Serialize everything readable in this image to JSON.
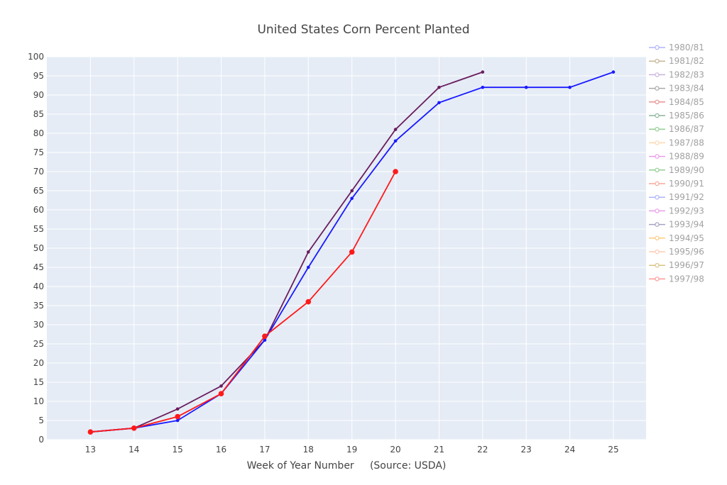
{
  "chart_data": {
    "type": "line",
    "title": "United States Corn Percent Planted",
    "xlabel": "Week of Year Number     (Source: USDA)",
    "ylabel": "",
    "xlim": [
      12.0,
      25.75
    ],
    "ylim": [
      0,
      100
    ],
    "xticks": [
      13,
      14,
      15,
      16,
      17,
      18,
      19,
      20,
      21,
      22,
      23,
      24,
      25
    ],
    "yticks": [
      0,
      5,
      10,
      15,
      20,
      25,
      30,
      35,
      40,
      45,
      50,
      55,
      60,
      65,
      70,
      75,
      80,
      85,
      90,
      95,
      100
    ],
    "plot_background": "#e5ecf6",
    "grid": true,
    "legend_position": "right",
    "series": [
      {
        "name": "1980/81",
        "color": "#636efa",
        "visible": false,
        "x": [],
        "y": []
      },
      {
        "name": "1981/82",
        "color": "#8c6d31",
        "visible": false,
        "x": [],
        "y": []
      },
      {
        "name": "1982/83",
        "color": "#9467bd",
        "visible": false,
        "x": [],
        "y": []
      },
      {
        "name": "1983/84",
        "color": "#555555",
        "visible": false,
        "x": [],
        "y": []
      },
      {
        "name": "1984/85",
        "color": "#d62728",
        "visible": false,
        "x": [],
        "y": []
      },
      {
        "name": "1985/86",
        "color": "#1a6b3a",
        "visible": false,
        "x": [],
        "y": []
      },
      {
        "name": "1986/87",
        "color": "#2ca02c",
        "visible": false,
        "x": [],
        "y": []
      },
      {
        "name": "1987/88",
        "color": "#ffb366",
        "visible": false,
        "x": [],
        "y": []
      },
      {
        "name": "1988/89",
        "color": "#d63dd6",
        "visible": false,
        "x": [],
        "y": []
      },
      {
        "name": "1989/90",
        "color": "#2ca02c",
        "visible": false,
        "x": [],
        "y": []
      },
      {
        "name": "1990/91",
        "color": "#ef553b",
        "visible": false,
        "x": [],
        "y": []
      },
      {
        "name": "1991/92",
        "color": "#636efa",
        "visible": false,
        "x": [],
        "y": []
      },
      {
        "name": "1992/93",
        "color": "#d63dd6",
        "visible": false,
        "x": [],
        "y": []
      },
      {
        "name": "1993/94",
        "color": "#4a4a8a",
        "visible": false,
        "x": [],
        "y": []
      },
      {
        "name": "1994/95",
        "color": "#ff9900",
        "visible": false,
        "x": [],
        "y": []
      },
      {
        "name": "1995/96",
        "color": "#ff9966",
        "visible": false,
        "x": [],
        "y": []
      },
      {
        "name": "1996/97",
        "color": "#b8860b",
        "visible": false,
        "x": [],
        "y": []
      },
      {
        "name": "1997/98",
        "color": "#ff3333",
        "visible": false,
        "x": [],
        "y": []
      }
    ],
    "plotted_lines": [
      {
        "color": "#6b1d5e",
        "marker_size": 4,
        "x": [
          13,
          14,
          15,
          16,
          17,
          18,
          19,
          20,
          21,
          22
        ],
        "y": [
          2,
          3,
          8,
          14,
          26,
          49,
          65,
          81,
          92,
          96
        ]
      },
      {
        "color": "#1a1aff",
        "marker_size": 4,
        "x": [
          13,
          14,
          15,
          16,
          17,
          18,
          19,
          20,
          21,
          22,
          23,
          24,
          25
        ],
        "y": [
          2,
          3,
          5,
          12,
          26,
          45,
          63,
          78,
          88,
          92,
          92,
          92,
          96
        ]
      },
      {
        "color": "#ff1a1a",
        "marker_size": 7,
        "x": [
          13,
          14,
          15,
          16,
          17,
          18,
          19,
          20
        ],
        "y": [
          2,
          3,
          6,
          12,
          27,
          36,
          49,
          70
        ]
      }
    ]
  }
}
